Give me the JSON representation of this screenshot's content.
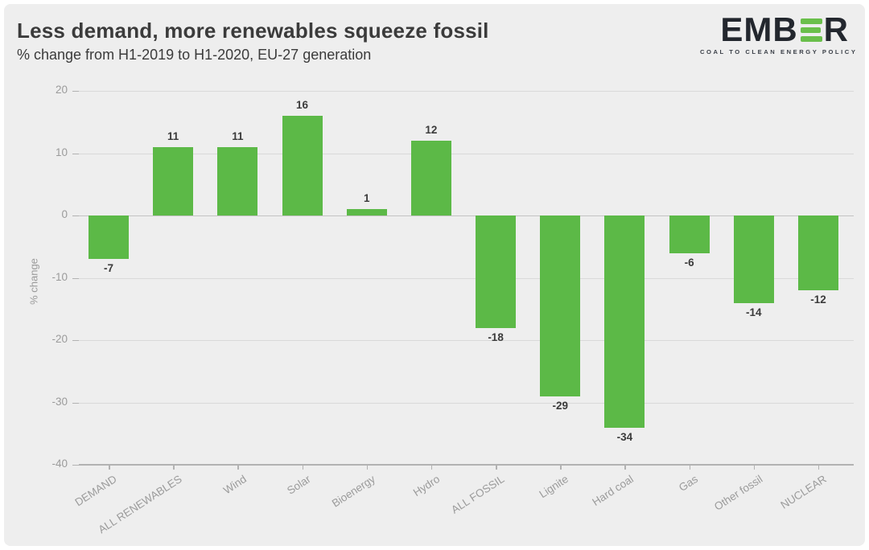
{
  "header": {
    "title": "Less demand, more renewables squeeze fossil",
    "subtitle": "% change from H1-2019 to H1-2020, EU-27 generation"
  },
  "logo": {
    "word_left": "EMB",
    "word_right": "R",
    "tagline": "COAL TO CLEAN ENERGY POLICY",
    "green": "#6abf4b",
    "dark": "#23272e"
  },
  "chart_data": {
    "type": "bar",
    "title": "Less demand, more renewables squeeze fossil",
    "subtitle": "% change from H1-2019 to H1-2020, EU-27 generation",
    "categories": [
      "DEMAND",
      "ALL RENEWABLES",
      "Wind",
      "Solar",
      "Bioenergy",
      "Hydro",
      "ALL FOSSIL",
      "Lignite",
      "Hard coal",
      "Gas",
      "Other fossil",
      "NUCLEAR"
    ],
    "values": [
      -7,
      11,
      11,
      16,
      1,
      12,
      -18,
      -29,
      -34,
      -6,
      -14,
      -12
    ],
    "xlabel": "",
    "ylabel": "% change",
    "ylim": [
      -40,
      20
    ],
    "yticks": [
      20,
      10,
      0,
      -10,
      -20,
      -30,
      -40
    ],
    "grid": true,
    "legend": false,
    "bar_color": "#5cb947",
    "background": "#eeeeee"
  }
}
